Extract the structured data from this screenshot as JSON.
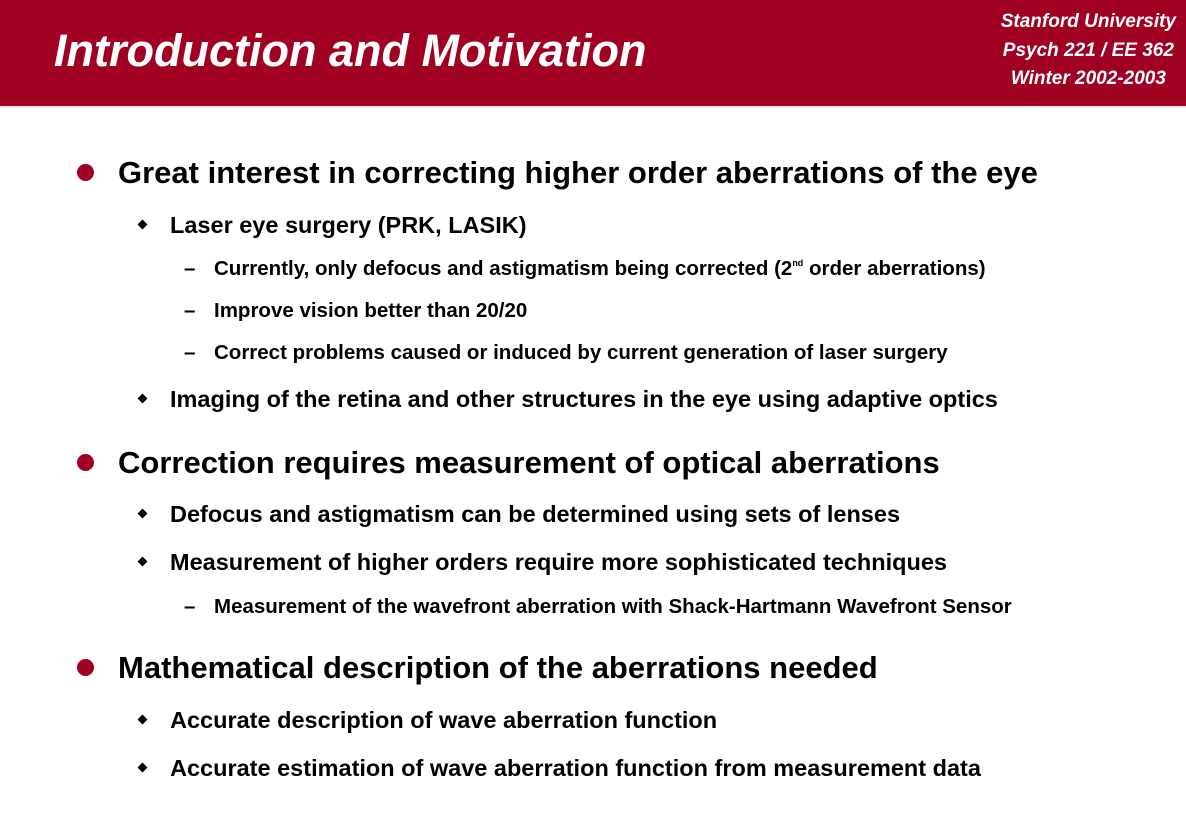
{
  "header": {
    "title": "Introduction and Motivation",
    "institution_line1": "Stanford University",
    "institution_line2": "Psych 221 / EE 362",
    "institution_line3": "Winter 2002-2003",
    "bg_color": "#a00022"
  },
  "marker_icons": {
    "level1": "filled-circle-bullet",
    "level2": "diamond-bullet",
    "level3": "en-dash"
  },
  "bullets": [
    {
      "text": "Great interest in correcting higher order aberrations of the eye",
      "children": [
        {
          "text": "Laser eye surgery (PRK, LASIK)",
          "children": [
            {
              "text_before_sup": "Currently, only defocus and astigmatism being corrected (2",
              "sup": "nd",
              "text_after_sup": " order aberrations)"
            },
            {
              "text": "Improve vision better than 20/20"
            },
            {
              "text": "Correct problems caused or induced by current generation of laser surgery"
            }
          ]
        },
        {
          "text": "Imaging of the retina and other structures in the eye using adaptive optics"
        }
      ]
    },
    {
      "text": "Correction requires measurement of optical aberrations",
      "children": [
        {
          "text": "Defocus and astigmatism can be determined using sets of lenses"
        },
        {
          "text": "Measurement of higher orders require more sophisticated techniques",
          "children": [
            {
              "text": "Measurement of the wavefront aberration with Shack-Hartmann Wavefront Sensor"
            }
          ]
        }
      ]
    },
    {
      "text": "Mathematical description of the aberrations needed",
      "children": [
        {
          "text": "Accurate description of wave aberration function"
        },
        {
          "text": "Accurate estimation of wave aberration function from measurement data"
        }
      ]
    }
  ]
}
